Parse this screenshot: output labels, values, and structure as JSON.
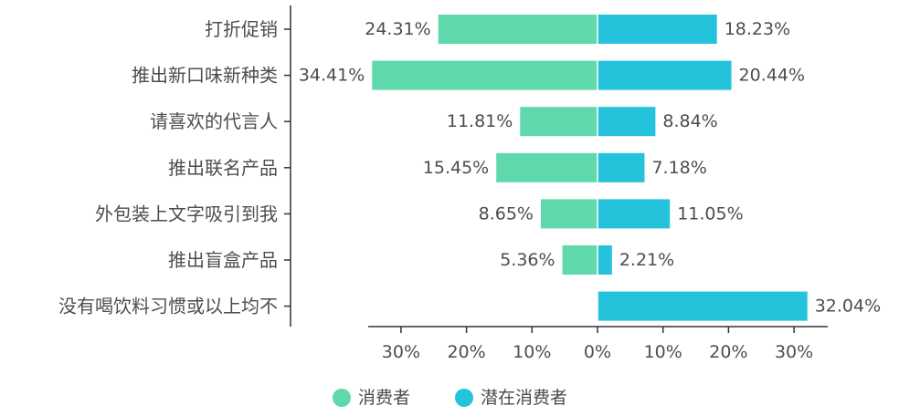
{
  "chart_data": {
    "type": "bar",
    "orientation": "horizontal-diverging",
    "categories": [
      "打折促销",
      "推出新口味新种类",
      "请喜欢的代言人",
      "推出联名产品",
      "外包装上文字吸引到我",
      "推出盲盒产品",
      "没有喝饮料习惯或以上均不"
    ],
    "series": [
      {
        "name": "消费者",
        "direction": "left",
        "values": [
          24.31,
          34.41,
          11.81,
          15.45,
          8.65,
          5.36,
          null
        ],
        "labels": [
          "24.31%",
          "34.41%",
          "11.81%",
          "15.45%",
          "8.65%",
          "5.36%",
          ""
        ]
      },
      {
        "name": "潜在消费者",
        "direction": "right",
        "values": [
          18.23,
          20.44,
          8.84,
          7.18,
          11.05,
          2.21,
          32.04
        ],
        "labels": [
          "18.23%",
          "20.44%",
          "8.84%",
          "7.18%",
          "11.05%",
          "2.21%",
          "32.04%"
        ]
      }
    ],
    "x_ticks": [
      -30,
      -20,
      -10,
      0,
      10,
      20,
      30
    ],
    "x_tick_labels": [
      "30%",
      "20%",
      "10%",
      "0%",
      "10%",
      "20%",
      "30%"
    ],
    "xlim": [
      -34.41,
      32.04
    ],
    "legend_position": "bottom",
    "grid": false,
    "title": "",
    "xlabel": "",
    "ylabel": ""
  },
  "colors": {
    "series_left": "#5fd8ac",
    "series_right": "#25c3db",
    "axis": "#333333",
    "text": "#4d4d4d"
  }
}
